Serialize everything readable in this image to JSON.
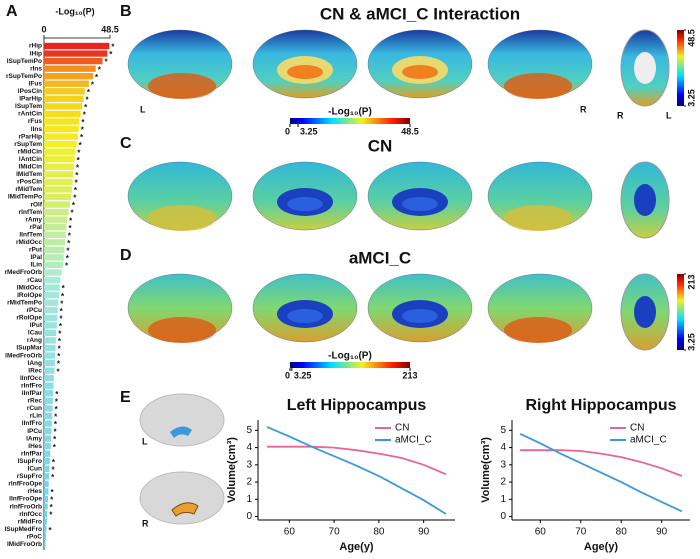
{
  "chart_data": [
    {
      "type": "hbar",
      "xlabel": "-Log₁₀(P)",
      "xlim": [
        0,
        48.5
      ],
      "xticks": [
        0,
        48.5
      ],
      "categories": [
        "rHip",
        "lHip",
        "lSupTemPo",
        "rIns",
        "rSupTemPo",
        "lFus",
        "lPosCin",
        "lParHip",
        "lSupTem",
        "rAntCin",
        "rFus",
        "lIns",
        "rParHip",
        "rSupTem",
        "rMidCin",
        "lAntCin",
        "lMidCin",
        "lMidTem",
        "rPosCin",
        "rMidTem",
        "lMidTemPo",
        "rOlf",
        "rInfTem",
        "rAmy",
        "rPal",
        "lInfTem",
        "rMidOcc",
        "rPut",
        "lPal",
        "lLin",
        "rMedFroOrb",
        "rCau",
        "lMidOcc",
        "lRolOpe",
        "rMidTemPo",
        "rPCu",
        "rRolOpe",
        "lPut",
        "lCau",
        "rAng",
        "lSupMar",
        "lMedFroOrb",
        "lAng",
        "lRec",
        "lInfOcc",
        "rInfFro",
        "lInfPar",
        "rRec",
        "rCun",
        "rLin",
        "lInfFro",
        "lPCu",
        "lAmy",
        "lHes",
        "rInfPar",
        "lSupFro",
        "lCun",
        "rSupFro",
        "rInfFroOpe",
        "rHes",
        "lInfFroOpe",
        "rInfFroOrb",
        "rInfOcc",
        "rMidFro",
        "lSupMedFro",
        "rPoC",
        "lMidFroOrb"
      ],
      "values": [
        48,
        46.5,
        43,
        38,
        36,
        33,
        30,
        29,
        28,
        27,
        26,
        25.5,
        25,
        24,
        23,
        22.5,
        22,
        21.5,
        21,
        20.5,
        20,
        19,
        18,
        17,
        16.5,
        16,
        15.5,
        15,
        14.5,
        14,
        13,
        12,
        11.5,
        11,
        10.5,
        10,
        9.8,
        9.5,
        9,
        8.7,
        8.5,
        8.2,
        8,
        7.7,
        7.2,
        7,
        6.8,
        6.5,
        6.3,
        6,
        5.8,
        5.5,
        5.2,
        5,
        4.6,
        4.3,
        4,
        3.8,
        3.5,
        3.3,
        3,
        2.7,
        2.4,
        2.1,
        1.8,
        1.5,
        1.2
      ],
      "stars": [
        "*",
        "*",
        "*",
        "*",
        "*",
        "*",
        "*",
        "*",
        "*",
        "*",
        "*",
        "*",
        "*",
        "*",
        "*",
        "*",
        "*",
        "*",
        "*",
        "*",
        "*",
        "*",
        "*",
        "*",
        "*",
        "*",
        "*",
        "*",
        "*",
        "*",
        null,
        null,
        "*",
        "*",
        "*",
        "*",
        "*",
        "*",
        "*",
        "*",
        "*",
        "*",
        "*",
        "*",
        null,
        null,
        "*",
        "*",
        "*",
        "*",
        "*",
        "*",
        "*",
        "*",
        null,
        "*",
        "*",
        "*",
        null,
        "*",
        "*",
        "*",
        "*",
        null,
        "*",
        null,
        null
      ],
      "colormap": [
        "#6cc8f0",
        "#a8ecd8",
        "#f5f020",
        "#f5a020",
        "#e82020"
      ]
    },
    {
      "type": "line",
      "title": "Left Hippocampus",
      "xlabel": "Age(y)",
      "ylabel": "Volume(cm³)",
      "x": [
        55,
        60,
        65,
        70,
        75,
        80,
        85,
        90,
        95
      ],
      "xlim": [
        53,
        97
      ],
      "ylim": [
        -0.2,
        5.6
      ],
      "xticks": [
        60,
        70,
        80,
        90
      ],
      "yticks": [
        0,
        1,
        2,
        3,
        4,
        5
      ],
      "legend": "upper right",
      "series": [
        {
          "name": "CN",
          "color": "#e8649a",
          "values": [
            4.05,
            4.05,
            4.05,
            4.0,
            3.85,
            3.65,
            3.4,
            3.0,
            2.45
          ]
        },
        {
          "name": "aMCI_C",
          "color": "#3a9ad9",
          "values": [
            5.2,
            4.65,
            4.05,
            3.5,
            2.95,
            2.35,
            1.65,
            0.95,
            0.15
          ]
        }
      ]
    },
    {
      "type": "line",
      "title": "Right Hippocampus",
      "xlabel": "Age(y)",
      "ylabel": "Volume(cm³)",
      "x": [
        55,
        60,
        65,
        70,
        75,
        80,
        85,
        90,
        95
      ],
      "xlim": [
        53,
        97
      ],
      "ylim": [
        -0.2,
        5.6
      ],
      "xticks": [
        60,
        70,
        80,
        90
      ],
      "yticks": [
        0,
        1,
        2,
        3,
        4,
        5
      ],
      "legend": "upper right",
      "series": [
        {
          "name": "CN",
          "color": "#e8649a",
          "values": [
            3.85,
            3.85,
            3.85,
            3.8,
            3.65,
            3.45,
            3.15,
            2.8,
            2.35
          ]
        },
        {
          "name": "aMCI_C",
          "color": "#3a9ad9",
          "values": [
            4.8,
            4.25,
            3.65,
            3.1,
            2.55,
            2.0,
            1.4,
            0.85,
            0.3
          ]
        }
      ]
    }
  ],
  "panel_A": {
    "letter": "A"
  },
  "brain_panels": [
    {
      "letter": "B",
      "title": "CN & aMCI_C Interaction",
      "hemisphere_labels": [
        "L",
        "R"
      ],
      "axial_labels": [
        "R",
        "L"
      ],
      "colorbar": {
        "label": "-Log₁₀(P)",
        "ticks": [
          0,
          3.25,
          48.5
        ]
      },
      "side_colorbar_ticks": [
        48.5,
        3.25
      ]
    },
    {
      "letter": "C",
      "title": "CN"
    },
    {
      "letter": "D",
      "title": "aMCI_C",
      "colorbar": {
        "label": "-Log₁₀(P)",
        "ticks": [
          0,
          3.25,
          213
        ]
      },
      "side_colorbar_ticks": [
        213,
        3.25
      ]
    }
  ],
  "panel_E": {
    "letter": "E",
    "hemisphere_labels": [
      "L",
      "R"
    ]
  }
}
